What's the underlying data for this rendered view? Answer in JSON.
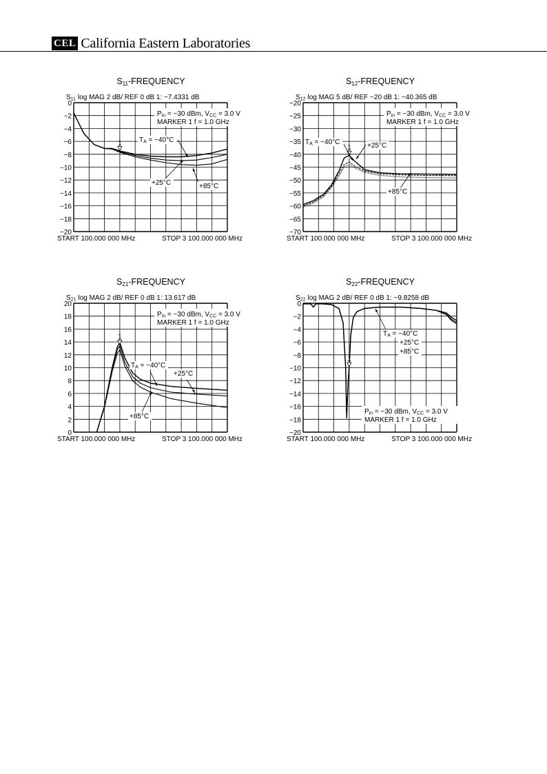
{
  "header": {
    "logo": "CEL",
    "company": "California Eastern Laboratories"
  },
  "chart_data": [
    {
      "type": "line",
      "title_main": "S",
      "title_sub": "11",
      "title_rest": "-FREQUENCY",
      "hdr_sym": "S",
      "hdr_sub": "11",
      "header_text": "log    MAG    2 dB/    REF 0 dB    1: −7.4331 dB",
      "cond_line1": "P",
      "cond_line1_sub": "in",
      "cond_line1_mid": " = −30 dBm, V",
      "cond_line1_sub2": "CC",
      "cond_line1_end": " = 3.0 V",
      "cond_line2": "MARKER 1  f = 1.0 GHz",
      "start_label": "START  100.000 000 MHz",
      "stop_label": "STOP  3 100.000 000 MHz",
      "ylim": [
        -20,
        0
      ],
      "yticks": [
        0,
        -2,
        -4,
        -6,
        -8,
        -10,
        -12,
        -14,
        -16,
        -18,
        -20
      ],
      "ytick_labels": [
        "0",
        "−2",
        "−4",
        "−6",
        "−8",
        "−10",
        "−12",
        "−14",
        "−16",
        "−18",
        "−20"
      ],
      "xlim": [
        100,
        3100
      ],
      "marker": {
        "label": "1",
        "x": 1000,
        "y": -7.4331
      },
      "annotations": [
        {
          "text": "T",
          "sub": "A",
          "rest": " = −40°C"
        },
        {
          "text": "+25°C"
        },
        {
          "text": "+85°C"
        }
      ],
      "series": [
        {
          "x": [
            100,
            300,
            500,
            700,
            850,
            1000,
            1300,
            1600,
            1900,
            2200,
            2500,
            2800,
            3100
          ],
          "y": [
            -1.6,
            -4.8,
            -6.5,
            -7.1,
            -7.1,
            -7.5,
            -8.0,
            -8.3,
            -8.4,
            -8.4,
            -8.2,
            -7.8,
            -7.2
          ]
        },
        {
          "x": [
            100,
            300,
            500,
            700,
            850,
            1000,
            1300,
            1600,
            1900,
            2200,
            2500,
            2800,
            3100
          ],
          "y": [
            -1.6,
            -4.8,
            -6.5,
            -7.1,
            -7.1,
            -7.6,
            -8.2,
            -8.6,
            -8.9,
            -9.0,
            -8.9,
            -8.5,
            -8.0
          ]
        },
        {
          "x": [
            100,
            300,
            500,
            700,
            850,
            1000,
            1300,
            1600,
            1900,
            2200,
            2500,
            2800,
            3100
          ],
          "y": [
            -1.6,
            -4.8,
            -6.5,
            -7.1,
            -7.2,
            -7.7,
            -8.4,
            -8.9,
            -9.3,
            -9.6,
            -9.7,
            -9.5,
            -8.8
          ]
        }
      ]
    },
    {
      "type": "line",
      "title_main": "S",
      "title_sub": "12",
      "title_rest": "-FREQUENCY",
      "hdr_sym": "S",
      "hdr_sub": "12",
      "header_text": "log    MAG    5 dB/    REF −20 dB    1: −40.365 dB",
      "cond_line1": "P",
      "cond_line1_sub": "in",
      "cond_line1_mid": " = −30 dBm, V",
      "cond_line1_sub2": "CC",
      "cond_line1_end": " = 3.0 V",
      "cond_line2": "MARKER 1  f = 1.0 GHz",
      "start_label": "START  100.000 000 MHz",
      "stop_label": "STOP  3 100.000 000 MHz",
      "ylim": [
        -70,
        -20
      ],
      "yticks": [
        -20,
        -25,
        -30,
        -35,
        -40,
        -45,
        -50,
        -55,
        -60,
        -65,
        -70
      ],
      "ytick_labels": [
        "−20",
        "−25",
        "−30",
        "−35",
        "−40",
        "−45",
        "−50",
        "−55",
        "−60",
        "−65",
        "−70"
      ],
      "xlim": [
        100,
        3100
      ],
      "marker": {
        "label": "1",
        "x": 1000,
        "y": -40.365
      },
      "annotations": [
        {
          "text": "T",
          "sub": "A",
          "rest": " = −40°C"
        },
        {
          "text": "+25°C"
        },
        {
          "text": "+85°C"
        }
      ],
      "series": [
        {
          "x": [
            100,
            300,
            500,
            650,
            800,
            900,
            1000,
            1100,
            1300,
            1600,
            2000,
            2500,
            3100
          ],
          "y": [
            -59.5,
            -58,
            -55.5,
            -52,
            -46.5,
            -41.5,
            -40.4,
            -42.5,
            -46,
            -47.2,
            -47.6,
            -47.7,
            -47.8
          ]
        },
        {
          "x": [
            100,
            300,
            500,
            650,
            800,
            900,
            1000,
            1100,
            1300,
            1600,
            2000,
            2500,
            3100
          ],
          "y": [
            -60,
            -58.5,
            -56,
            -52.5,
            -47.5,
            -44,
            -43,
            -44.5,
            -46.5,
            -47.6,
            -48,
            -48.2,
            -48.3
          ]
        },
        {
          "x": [
            100,
            300,
            500,
            650,
            800,
            900,
            1000,
            1100,
            1300,
            1600,
            2000,
            2500,
            3100
          ],
          "y": [
            -60.5,
            -59,
            -56.5,
            -53,
            -48.5,
            -45,
            -44,
            -45.2,
            -47,
            -48.2,
            -48.8,
            -49,
            -49.2
          ]
        }
      ]
    },
    {
      "type": "line",
      "title_main": "S",
      "title_sub": "21",
      "title_rest": "-FREQUENCY",
      "hdr_sym": "S",
      "hdr_sub": "21",
      "header_text": "log    MAG    2 dB/    REF 0 dB    1: 13.617 dB",
      "cond_line1": "P",
      "cond_line1_sub": "in",
      "cond_line1_mid": " = −30 dBm, V",
      "cond_line1_sub2": "CC",
      "cond_line1_end": " = 3.0 V",
      "cond_line2": "MARKER 1  f = 1.0 GHz",
      "start_label": "START  100.000 000 MHz",
      "stop_label": "STOP  3 100.000 000 MHz",
      "ylim": [
        0,
        20
      ],
      "yticks": [
        20,
        18,
        16,
        14,
        12,
        10,
        8,
        6,
        4,
        2,
        0
      ],
      "ytick_labels": [
        "20",
        "18",
        "16",
        "14",
        "12",
        "10",
        "8",
        "6",
        "4",
        "2",
        "0"
      ],
      "xlim": [
        100,
        3100
      ],
      "marker": {
        "label": "1",
        "x": 1000,
        "y": 13.617
      },
      "annotations": [
        {
          "text": "T",
          "sub": "A",
          "rest": " = −40°C"
        },
        {
          "text": "+25°C"
        },
        {
          "text": "+85°C"
        }
      ],
      "series": [
        {
          "x": [
            550,
            700,
            850,
            950,
            1000,
            1100,
            1250,
            1400,
            1600,
            2000,
            2500,
            3100
          ],
          "y": [
            0,
            4,
            10,
            13.2,
            13.9,
            11.5,
            9.2,
            8.2,
            7.6,
            7.1,
            6.8,
            6.5
          ]
        },
        {
          "x": [
            550,
            700,
            850,
            950,
            1000,
            1100,
            1250,
            1400,
            1600,
            2000,
            2500,
            3100
          ],
          "y": [
            0,
            4,
            9.8,
            12.8,
            13.4,
            10.8,
            8.6,
            7.6,
            6.9,
            6.2,
            5.9,
            5.6
          ]
        },
        {
          "x": [
            550,
            700,
            850,
            950,
            1000,
            1100,
            1250,
            1400,
            1600,
            2000,
            2500,
            3100
          ],
          "y": [
            0,
            3.8,
            9.4,
            12.2,
            12.8,
            10.2,
            8.0,
            7.0,
            6.2,
            5.2,
            4.5,
            3.8
          ]
        }
      ]
    },
    {
      "type": "line",
      "title_main": "S",
      "title_sub": "22",
      "title_rest": "-FREQUENCY",
      "hdr_sym": "S",
      "hdr_sub": "22",
      "header_text": "log    MAG    2 dB/    REF 0 dB    1: −9.8258 dB",
      "cond_line1": "P",
      "cond_line1_sub": "in",
      "cond_line1_mid": " = −30 dBm, V",
      "cond_line1_sub2": "CC",
      "cond_line1_end": " = 3.0 V",
      "cond_line2": "MARKER 1  f = 1.0 GHz",
      "start_label": "START  100.000 000 MHz",
      "stop_label": "STOP  3 100.000 000 MHz",
      "ylim": [
        -20,
        0
      ],
      "yticks": [
        0,
        -2,
        -4,
        -6,
        -8,
        -10,
        -12,
        -14,
        -16,
        -18,
        -20
      ],
      "ytick_labels": [
        "0",
        "−2",
        "−4",
        "−6",
        "−8",
        "−10",
        "−12",
        "−14",
        "−16",
        "−18",
        "−20"
      ],
      "xlim": [
        100,
        3100
      ],
      "marker": {
        "label": "1",
        "x": 1000,
        "y": -9.8258
      },
      "annotations": [
        {
          "text": "T",
          "sub": "A",
          "rest": " = −40°C"
        },
        {
          "text": "+25°C"
        },
        {
          "text": "+85°C"
        }
      ],
      "series": [
        {
          "x": [
            100,
            250,
            300,
            350,
            500,
            650,
            800,
            880,
            930,
            950,
            980,
            1000,
            1030,
            1080,
            1150,
            1300,
            1600,
            2000,
            2400,
            2700,
            2900,
            3000,
            3100
          ],
          "y": [
            -0.1,
            -0.1,
            -0.6,
            -0.1,
            -0.1,
            -0.2,
            -0.8,
            -3,
            -10,
            -17.8,
            -12,
            -9.8,
            -5,
            -2.2,
            -1.3,
            -0.8,
            -0.6,
            -0.6,
            -0.8,
            -1.1,
            -1.5,
            -2.2,
            -2.7
          ]
        },
        {
          "x": [
            100,
            250,
            300,
            350,
            500,
            650,
            800,
            880,
            930,
            950,
            980,
            1000,
            1030,
            1080,
            1150,
            1300,
            1600,
            2000,
            2400,
            2700,
            2900,
            3000,
            3100
          ],
          "y": [
            -0.1,
            -0.1,
            -0.6,
            -0.1,
            -0.1,
            -0.2,
            -0.8,
            -3,
            -10,
            -17.8,
            -12,
            -9.8,
            -5,
            -2.2,
            -1.3,
            -0.8,
            -0.6,
            -0.6,
            -0.8,
            -1.1,
            -1.7,
            -2.5,
            -3.0
          ]
        },
        {
          "x": [
            100,
            250,
            300,
            350,
            500,
            650,
            800,
            880,
            930,
            950,
            980,
            1000,
            1030,
            1080,
            1150,
            1300,
            1600,
            2000,
            2400,
            2700,
            2900,
            3000,
            3100
          ],
          "y": [
            -0.1,
            -0.1,
            -0.6,
            -0.1,
            -0.1,
            -0.2,
            -0.8,
            -3,
            -10,
            -17.8,
            -12,
            -9.8,
            -5,
            -2.2,
            -1.3,
            -0.8,
            -0.6,
            -0.6,
            -0.8,
            -1.1,
            -1.8,
            -2.7,
            -3.2
          ]
        }
      ]
    }
  ]
}
